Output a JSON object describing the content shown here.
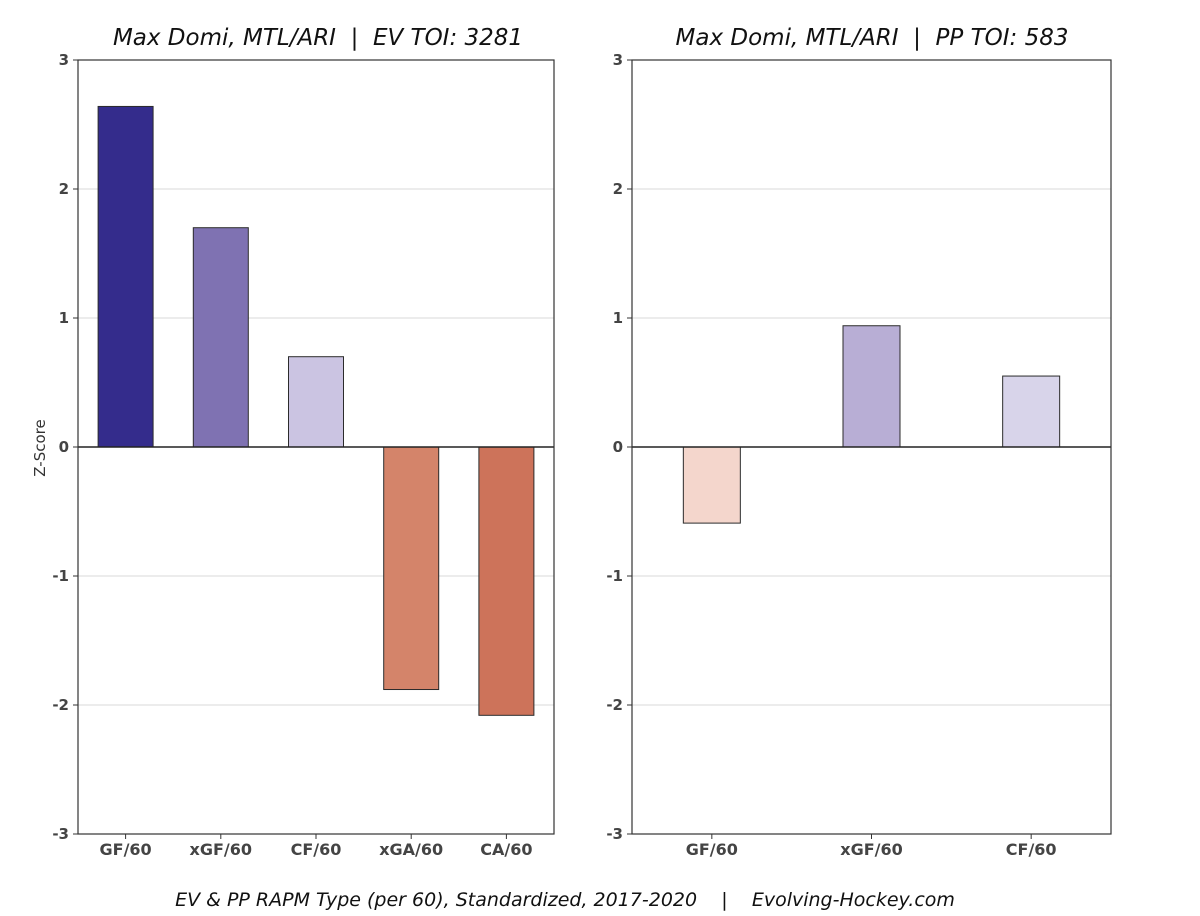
{
  "chart_data": [
    {
      "type": "bar",
      "title": "Max Domi, MTL/ARI  |  EV TOI: 3281",
      "ylabel": "Z-Score",
      "ylim": [
        -3,
        3
      ],
      "yticks": [
        3,
        2,
        1,
        0,
        -1,
        -2,
        -3
      ],
      "ytick_labels": [
        "3",
        "2",
        "1",
        "0",
        "-1",
        "-2",
        "-3"
      ],
      "grid": true,
      "categories": [
        "GF/60",
        "xGF/60",
        "CF/60",
        "xGA/60",
        "CA/60"
      ],
      "values": [
        2.64,
        1.7,
        0.7,
        -1.88,
        -2.08
      ],
      "colors": [
        "#342c8c",
        "#7f72b2",
        "#cbc4e2",
        "#d4846a",
        "#cd735a"
      ]
    },
    {
      "type": "bar",
      "title": "Max Domi, MTL/ARI  |  PP TOI: 583",
      "ylabel": "",
      "ylim": [
        -3,
        3
      ],
      "yticks": [
        3,
        2,
        1,
        0,
        -1,
        -2,
        -3
      ],
      "ytick_labels": [
        "3",
        "2",
        "1",
        "0",
        "-1",
        "-2",
        "-3"
      ],
      "grid": true,
      "categories": [
        "GF/60",
        "xGF/60",
        "CF/60"
      ],
      "values": [
        -0.59,
        0.94,
        0.55
      ],
      "colors": [
        "#f4d6cc",
        "#b8aed5",
        "#d8d4ea"
      ]
    }
  ],
  "footer": "EV & PP RAPM Type (per 60), Standardized, 2017-2020    |    Evolving-Hockey.com"
}
